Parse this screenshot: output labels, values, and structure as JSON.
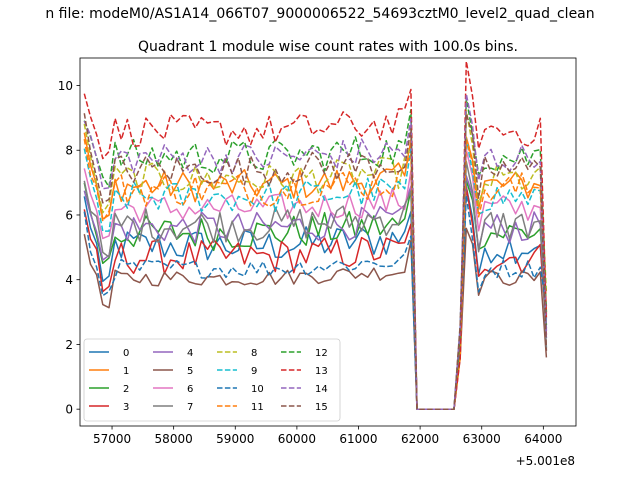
{
  "chart_data": {
    "type": "line",
    "suptitle": "n file: modeM0/AS1A14_066T07_9000006522_54693cztM0_level2_quad_clean",
    "title": "Quadrant 1 module wise count rates with 100.0s bins.",
    "xlabel": "",
    "ylabel": "",
    "x_offset_label": "+5.001e8",
    "xlim": [
      56480,
      64530
    ],
    "ylim": [
      -0.52,
      10.85
    ],
    "xticks": [
      57000,
      58000,
      59000,
      60000,
      61000,
      62000,
      63000,
      64000
    ],
    "yticks": [
      0,
      2,
      4,
      6,
      8,
      10
    ],
    "grid": false,
    "legend_position": "lower-left",
    "legend_columns": 4,
    "x_start": 56550,
    "x_step": 100,
    "gap_start_index": 53,
    "gap_end_index": 62,
    "last_index": 75,
    "final_values": [
      2.5,
      3.0,
      2.6,
      2.3,
      2.2,
      1.6,
      2.8,
      1.9,
      3.6,
      2.7,
      3.2,
      3.0,
      2.9,
      2.8,
      2.4,
      1.8
    ],
    "series": [
      {
        "name": "0",
        "color": "#1f77b4",
        "dash": "solid",
        "level": 5.05,
        "spread": 0.55
      },
      {
        "name": "1",
        "color": "#ff7f0e",
        "dash": "solid",
        "level": 6.9,
        "spread": 0.5
      },
      {
        "name": "2",
        "color": "#2ca02c",
        "dash": "solid",
        "level": 5.45,
        "spread": 0.55
      },
      {
        "name": "3",
        "color": "#d62728",
        "dash": "solid",
        "level": 4.7,
        "spread": 0.55
      },
      {
        "name": "4",
        "color": "#9467bd",
        "dash": "solid",
        "level": 5.6,
        "spread": 0.5
      },
      {
        "name": "5",
        "color": "#8c564b",
        "dash": "solid",
        "level": 4.05,
        "spread": 0.25
      },
      {
        "name": "6",
        "color": "#e377c2",
        "dash": "solid",
        "level": 6.2,
        "spread": 0.45
      },
      {
        "name": "7",
        "color": "#7f7f7f",
        "dash": "solid",
        "level": 5.7,
        "spread": 0.55
      },
      {
        "name": "8",
        "color": "#bcbd22",
        "dash": "dashed",
        "level": 7.1,
        "spread": 0.5
      },
      {
        "name": "9",
        "color": "#17becf",
        "dash": "dashed",
        "level": 6.55,
        "spread": 0.5
      },
      {
        "name": "10",
        "color": "#1f77b4",
        "dash": "dashed",
        "level": 4.35,
        "spread": 0.3
      },
      {
        "name": "11",
        "color": "#ff7f0e",
        "dash": "dashed",
        "level": 6.8,
        "spread": 0.55
      },
      {
        "name": "12",
        "color": "#2ca02c",
        "dash": "dashed",
        "level": 7.8,
        "spread": 0.55
      },
      {
        "name": "13",
        "color": "#d62728",
        "dash": "dashed",
        "level": 8.6,
        "spread": 0.5
      },
      {
        "name": "14",
        "color": "#9467bd",
        "dash": "dashed",
        "level": 7.75,
        "spread": 0.5
      },
      {
        "name": "15",
        "color": "#8c564b",
        "dash": "dashed",
        "level": 7.4,
        "spread": 0.5
      }
    ]
  }
}
